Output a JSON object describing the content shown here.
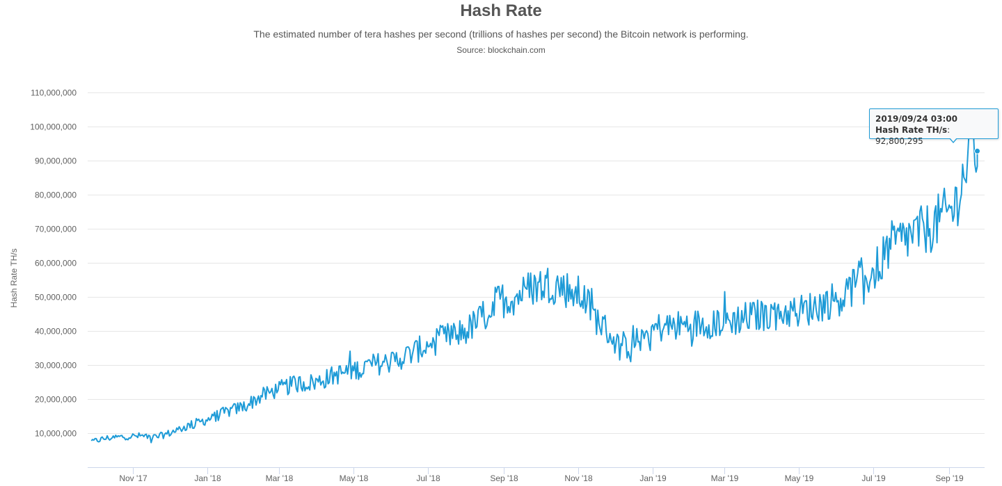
{
  "chart_data": {
    "type": "line",
    "title": "Hash Rate",
    "subtitle": "The estimated number of tera hashes per second (trillions of hashes per second) the Bitcoin network is performing.",
    "source": "Source: blockchain.com",
    "ylabel": "Hash Rate TH/s",
    "ylim": [
      0,
      110000000
    ],
    "y_ticks": [
      10000000,
      20000000,
      30000000,
      40000000,
      50000000,
      60000000,
      70000000,
      80000000,
      90000000,
      100000000,
      110000000
    ],
    "y_tick_labels": [
      "10,000,000",
      "20,000,000",
      "30,000,000",
      "40,000,000",
      "50,000,000",
      "60,000,000",
      "70,000,000",
      "80,000,000",
      "90,000,000",
      "100,000,000",
      "110,000,000"
    ],
    "xlim": [
      "2017-09-25",
      "2019-09-30"
    ],
    "x_ticks": [
      "2017-11-01",
      "2018-01-01",
      "2018-03-01",
      "2018-05-01",
      "2018-07-01",
      "2018-09-01",
      "2018-11-01",
      "2019-01-01",
      "2019-03-01",
      "2019-05-01",
      "2019-07-01",
      "2019-09-01"
    ],
    "x_tick_labels": [
      "Nov '17",
      "Jan '18",
      "Mar '18",
      "May '18",
      "Jul '18",
      "Sep '18",
      "Nov '18",
      "Jan '19",
      "Mar '19",
      "May '19",
      "Jul '19",
      "Sep '19"
    ],
    "grid": "horizontal",
    "legend": "none",
    "line_color": "#1e9bd7",
    "series": [
      {
        "x": [
          "2017-09-28",
          "2017-10-10",
          "2017-10-25",
          "2017-11-10",
          "2017-11-20",
          "2017-12-01",
          "2017-12-15",
          "2018-01-01",
          "2018-01-15",
          "2018-02-01",
          "2018-02-15",
          "2018-03-01",
          "2018-03-15",
          "2018-04-01",
          "2018-04-15",
          "2018-05-01",
          "2018-05-15",
          "2018-06-01",
          "2018-06-15",
          "2018-07-01",
          "2018-07-15",
          "2018-08-01",
          "2018-08-15",
          "2018-08-28",
          "2018-09-10",
          "2018-09-25",
          "2018-10-10",
          "2018-10-25",
          "2018-11-05",
          "2018-11-15",
          "2018-11-25",
          "2018-12-05",
          "2018-12-15",
          "2018-12-25",
          "2019-01-05",
          "2019-01-20",
          "2019-02-05",
          "2019-02-20",
          "2019-03-05",
          "2019-03-20",
          "2019-04-05",
          "2019-04-20",
          "2019-05-05",
          "2019-05-20",
          "2019-06-05",
          "2019-06-20",
          "2019-07-01",
          "2019-07-15",
          "2019-08-01",
          "2019-08-15",
          "2019-08-25",
          "2019-09-05",
          "2019-09-15",
          "2019-09-20",
          "2019-09-24"
        ],
        "values": [
          7500000,
          8500000,
          9000000,
          9200000,
          8800000,
          10000000,
          12000000,
          14000000,
          16000000,
          18000000,
          21000000,
          23000000,
          24500000,
          25000000,
          27000000,
          28500000,
          30000000,
          31000000,
          33000000,
          36000000,
          38000000,
          40000000,
          44000000,
          49000000,
          50000000,
          53000000,
          54000000,
          52000000,
          50000000,
          44000000,
          40000000,
          35000000,
          36000000,
          39000000,
          41000000,
          41500000,
          42000000,
          42500000,
          43000000,
          44000000,
          45000000,
          45500000,
          46000000,
          48000000,
          50000000,
          55000000,
          57000000,
          65000000,
          68000000,
          70000000,
          73000000,
          76000000,
          88000000,
          95000000,
          92800295
        ]
      }
    ]
  },
  "tooltip": {
    "date": "2019/09/24 03:00",
    "series_label": "Hash Rate TH/s",
    "value": "92,800,295"
  }
}
